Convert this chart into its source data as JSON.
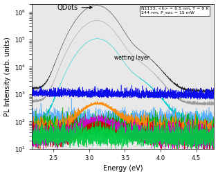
{
  "xlabel": "Energy (eV)",
  "ylabel": "PL Intensity (arb. units)",
  "xlim": [
    2.2,
    4.75
  ],
  "ylim": [
    10,
    2000000.0
  ],
  "annotation_box": "N1133, <h> = 6.5 nm, T = 9 K\n244 nm, P_exc = 15 mW",
  "qdots_label": "QDots",
  "wetting_label": "wetting layer",
  "bg_color": "#e8e8e8",
  "curves": [
    {
      "color": "#222222",
      "qdot": 1500000.0,
      "wl": 300000.0,
      "wl2": 50000.0,
      "bg": 1500,
      "noise": 80,
      "seed": 1
    },
    {
      "color": "#999999",
      "qdot": 400000.0,
      "wl": 100000.0,
      "wl2": 20000.0,
      "bg": 500,
      "noise": 30,
      "seed": 2
    },
    {
      "color": "#00cccc",
      "qdot": 80000.0,
      "wl": 30000.0,
      "wl2": 5000.0,
      "bg": 80,
      "noise": 8,
      "seed": 3
    },
    {
      "color": "#0000ee",
      "qdot": 0,
      "wl": 0,
      "wl2": 0,
      "bg": 800,
      "noise": 200,
      "seed": 4
    },
    {
      "color": "#55aaff",
      "qdot": 0,
      "wl": 0,
      "wl2": 0,
      "bg": 60,
      "noise": 15,
      "seed": 9
    },
    {
      "color": "#00aa00",
      "qdot": 0,
      "wl": 0,
      "wl2": 0,
      "bg": 20,
      "noise": 10,
      "seed": 5
    },
    {
      "color": "#ff8800",
      "qdot": 300.0,
      "wl": 100.0,
      "wl2": 50.0,
      "bg": 15,
      "noise": 8,
      "seed": 6
    },
    {
      "color": "#cc0000",
      "qdot": 30.0,
      "wl": 20.0,
      "wl2": 10.0,
      "bg": 8,
      "noise": 5,
      "seed": 7
    },
    {
      "color": "#cc00cc",
      "qdot": 60.0,
      "wl": 30.0,
      "wl2": 10.0,
      "bg": 8,
      "noise": 5,
      "seed": 8
    },
    {
      "color": "#00cc44",
      "qdot": 0,
      "wl": 0,
      "wl2": 0,
      "bg": 10,
      "noise": 5,
      "seed": 10
    }
  ]
}
